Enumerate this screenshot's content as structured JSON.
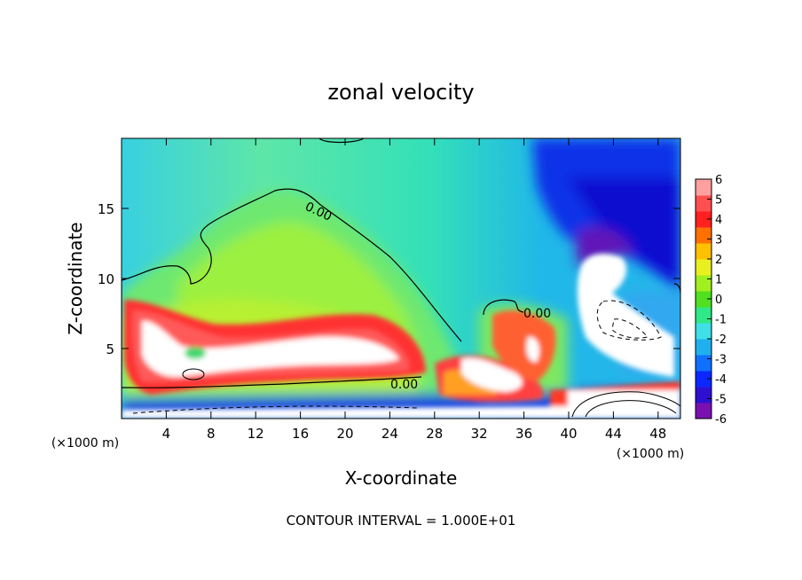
{
  "chart_data": {
    "type": "heatmap",
    "title": "zonal velocity",
    "xlabel": "X-coordinate",
    "ylabel": "Z-coordinate",
    "x_unit": "(×1000 m)",
    "y_unit": "(×1000 m)",
    "xlim": [
      0,
      50
    ],
    "ylim": [
      0,
      20
    ],
    "x_ticks": [
      4,
      8,
      12,
      16,
      20,
      24,
      28,
      32,
      36,
      40,
      44,
      48
    ],
    "y_ticks": [
      5,
      10,
      15
    ],
    "colorbar": {
      "min": -6,
      "max": 6,
      "ticks": [
        6,
        5,
        4,
        3,
        2,
        1,
        0,
        -1,
        -2,
        -3,
        -4,
        -5,
        -6
      ]
    },
    "contour_labels": [
      "0.00",
      "0.00",
      "0.00"
    ],
    "footer": "CONTOUR INTERVAL = 1.000E+01"
  }
}
